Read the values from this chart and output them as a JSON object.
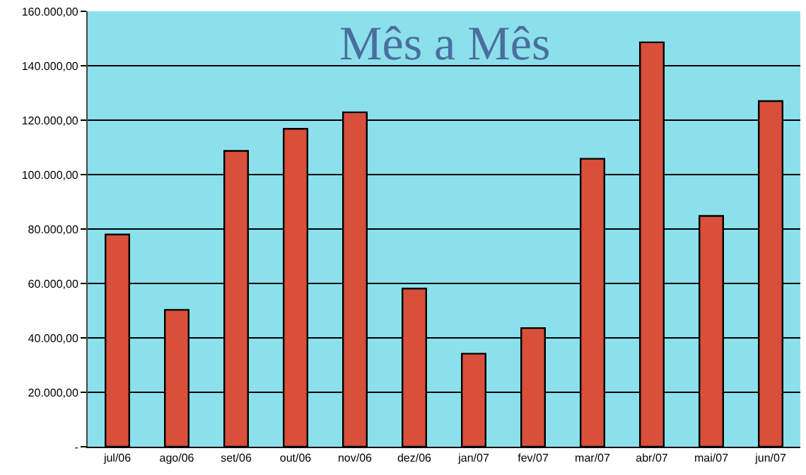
{
  "chart_data": {
    "type": "bar",
    "title": "Mês a Mês",
    "categories": [
      "jul/06",
      "ago/06",
      "set/06",
      "out/06",
      "nov/06",
      "dez/06",
      "jan/07",
      "fev/07",
      "mar/07",
      "abr/07",
      "mai/07",
      "jun/07"
    ],
    "values": [
      78000,
      50300,
      108700,
      116800,
      122900,
      58100,
      34200,
      43600,
      105800,
      148600,
      84800,
      127000
    ],
    "color": "#d8503a",
    "ylim": [
      0,
      160000
    ],
    "yticks": [
      {
        "value": 0,
        "label": "-"
      },
      {
        "value": 20000,
        "label": "20.000,00"
      },
      {
        "value": 40000,
        "label": "40.000,00"
      },
      {
        "value": 60000,
        "label": "60.000,00"
      },
      {
        "value": 80000,
        "label": "80.000,00"
      },
      {
        "value": 100000,
        "label": "100.000,00"
      },
      {
        "value": 120000,
        "label": "120.000,00"
      },
      {
        "value": 140000,
        "label": "140.000,00"
      },
      {
        "value": 160000,
        "label": "160.000,00"
      }
    ],
    "grid": "y"
  }
}
